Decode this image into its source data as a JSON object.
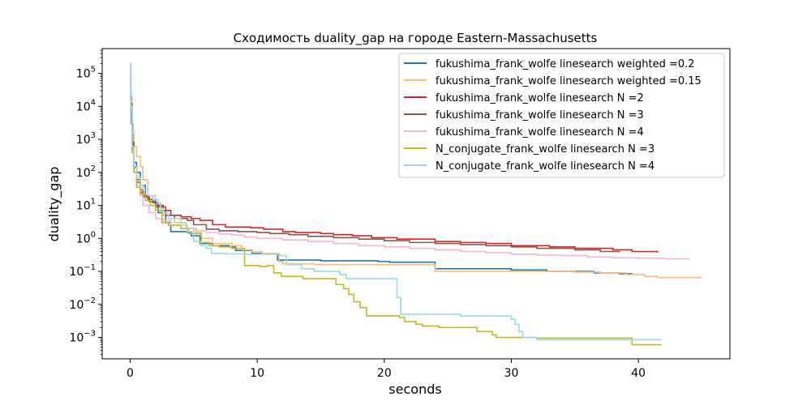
{
  "chart_data": {
    "type": "line",
    "title": "Сходимость duality_gap на городе Eastern-Massachusetts",
    "xlabel": "seconds",
    "ylabel": "duality_gap",
    "xlim": [
      -2.2,
      47.2
    ],
    "ylim_log10": [
      -3.65,
      5.75
    ],
    "yscale": "log",
    "x_ticks": [
      0,
      10,
      20,
      30,
      40
    ],
    "y_ticks": [
      {
        "exp": -3,
        "label": "10",
        "sup": "−3"
      },
      {
        "exp": -2,
        "label": "10",
        "sup": "−2"
      },
      {
        "exp": -1,
        "label": "10",
        "sup": "−1"
      },
      {
        "exp": 0,
        "label": "10",
        "sup": "0"
      },
      {
        "exp": 1,
        "label": "10",
        "sup": "1"
      },
      {
        "exp": 2,
        "label": "10",
        "sup": "2"
      },
      {
        "exp": 3,
        "label": "10",
        "sup": "3"
      },
      {
        "exp": 4,
        "label": "10",
        "sup": "4"
      },
      {
        "exp": 5,
        "label": "10",
        "sup": "5"
      }
    ],
    "grid": false,
    "legend_position": "upper-right",
    "series": [
      {
        "name": "fukushima_frank_wolfe linesearch weighted =0.2",
        "color": "#1f77b4",
        "points": [
          [
            0,
            200000
          ],
          [
            0.05,
            20000
          ],
          [
            0.1,
            3000
          ],
          [
            0.2,
            500
          ],
          [
            0.3,
            200
          ],
          [
            0.5,
            100
          ],
          [
            0.8,
            40
          ],
          [
            1.2,
            20
          ],
          [
            1.8,
            12
          ],
          [
            2.2,
            6
          ],
          [
            2.8,
            3
          ],
          [
            3.2,
            1.6
          ],
          [
            4.5,
            1.5
          ],
          [
            4.8,
            1.2
          ],
          [
            5.5,
            0.7
          ],
          [
            6.5,
            0.6
          ],
          [
            7.3,
            0.6
          ],
          [
            7.8,
            0.55
          ],
          [
            8.3,
            0.43
          ],
          [
            9.6,
            0.35
          ],
          [
            11.0,
            0.34
          ],
          [
            11.6,
            0.22
          ],
          [
            15.0,
            0.21
          ],
          [
            19.5,
            0.2
          ],
          [
            20.4,
            0.19
          ],
          [
            24.0,
            0.12
          ],
          [
            30.0,
            0.11
          ],
          [
            32.8,
            0.1
          ],
          [
            36.5,
            0.09
          ],
          [
            38.5,
            0.085
          ],
          [
            39.5,
            0.08
          ]
        ]
      },
      {
        "name": "fukushima_frank_wolfe linesearch weighted =0.15",
        "color": "#ffbb78",
        "points": [
          [
            0,
            200000
          ],
          [
            0.05,
            15000
          ],
          [
            0.15,
            1500
          ],
          [
            0.3,
            600
          ],
          [
            0.5,
            300
          ],
          [
            0.8,
            150
          ],
          [
            1.0,
            60
          ],
          [
            1.4,
            20
          ],
          [
            2.0,
            10
          ],
          [
            2.6,
            5
          ],
          [
            3.5,
            3
          ],
          [
            4.4,
            2
          ],
          [
            5.2,
            1.5
          ],
          [
            5.6,
            1.0
          ],
          [
            6.5,
            0.7
          ],
          [
            8.0,
            0.6
          ],
          [
            8.8,
            0.45
          ],
          [
            9.6,
            0.4
          ],
          [
            10.4,
            0.35
          ],
          [
            11.7,
            0.2
          ],
          [
            12.0,
            0.17
          ],
          [
            14.5,
            0.16
          ],
          [
            18.0,
            0.16
          ],
          [
            24.0,
            0.1
          ],
          [
            30.0,
            0.1
          ],
          [
            35.0,
            0.095
          ],
          [
            37.0,
            0.09
          ],
          [
            39.0,
            0.08
          ],
          [
            40.5,
            0.07
          ],
          [
            41.5,
            0.065
          ],
          [
            45.0,
            0.065
          ]
        ]
      },
      {
        "name": "fukushima_frank_wolfe linesearch N =2",
        "color": "#d62728",
        "points": [
          [
            0,
            200000
          ],
          [
            0.05,
            12000
          ],
          [
            0.15,
            800
          ],
          [
            0.3,
            150
          ],
          [
            0.5,
            60
          ],
          [
            0.8,
            30
          ],
          [
            1.0,
            20
          ],
          [
            1.4,
            15
          ],
          [
            2.0,
            10
          ],
          [
            2.6,
            7
          ],
          [
            3.2,
            5
          ],
          [
            4.0,
            4.5
          ],
          [
            4.8,
            4
          ],
          [
            5.5,
            3.5
          ],
          [
            6.5,
            2.6
          ],
          [
            7.5,
            2.2
          ],
          [
            9.5,
            2.1
          ],
          [
            10.5,
            1.9
          ],
          [
            12.0,
            1.6
          ],
          [
            13.0,
            1.5
          ],
          [
            15.0,
            1.4
          ],
          [
            16.0,
            1.3
          ],
          [
            17.5,
            1.2
          ],
          [
            19.0,
            1.05
          ],
          [
            21.0,
            0.95
          ],
          [
            24.0,
            0.8
          ],
          [
            26.0,
            0.75
          ],
          [
            28.0,
            0.7
          ],
          [
            30.0,
            0.6
          ],
          [
            33.0,
            0.55
          ],
          [
            35.0,
            0.5
          ],
          [
            38.0,
            0.45
          ],
          [
            39.5,
            0.4
          ],
          [
            41.5,
            0.37
          ]
        ]
      },
      {
        "name": "fukushima_frank_wolfe linesearch N =3",
        "color": "#8c564b",
        "points": [
          [
            0,
            200000
          ],
          [
            0.05,
            12000
          ],
          [
            0.15,
            700
          ],
          [
            0.3,
            140
          ],
          [
            0.5,
            50
          ],
          [
            0.8,
            25
          ],
          [
            1.0,
            18
          ],
          [
            1.5,
            13
          ],
          [
            2.0,
            9
          ],
          [
            2.8,
            5
          ],
          [
            3.5,
            4
          ],
          [
            4.5,
            3.5
          ],
          [
            5.0,
            2.6
          ],
          [
            6.0,
            1.9
          ],
          [
            7.0,
            1.7
          ],
          [
            8.5,
            1.6
          ],
          [
            10.0,
            1.5
          ],
          [
            11.0,
            1.4
          ],
          [
            12.5,
            1.3
          ],
          [
            14.0,
            1.15
          ],
          [
            16.0,
            1.05
          ],
          [
            18.0,
            0.95
          ],
          [
            20.0,
            0.85
          ],
          [
            22.0,
            0.75
          ],
          [
            24.0,
            0.7
          ],
          [
            26.0,
            0.65
          ],
          [
            28.0,
            0.6
          ],
          [
            30.0,
            0.55
          ],
          [
            32.0,
            0.5
          ],
          [
            35.0,
            0.45
          ],
          [
            37.0,
            0.4
          ],
          [
            38.5,
            0.38
          ]
        ]
      },
      {
        "name": "fukushima_frank_wolfe linesearch N =4",
        "color": "#f7b6d2",
        "points": [
          [
            0,
            200000
          ],
          [
            0.05,
            10000
          ],
          [
            0.15,
            500
          ],
          [
            0.3,
            100
          ],
          [
            0.5,
            40
          ],
          [
            0.8,
            20
          ],
          [
            1.0,
            10
          ],
          [
            1.5,
            6
          ],
          [
            2.0,
            4
          ],
          [
            2.6,
            3.5
          ],
          [
            3.2,
            2.5
          ],
          [
            4.0,
            2.0
          ],
          [
            5.0,
            1.7
          ],
          [
            6.0,
            1.5
          ],
          [
            7.0,
            1.35
          ],
          [
            8.0,
            1.25
          ],
          [
            9.0,
            1.1
          ],
          [
            10.0,
            1.0
          ],
          [
            12.0,
            0.9
          ],
          [
            14.0,
            0.8
          ],
          [
            16.0,
            0.7
          ],
          [
            18.0,
            0.6
          ],
          [
            20.0,
            0.55
          ],
          [
            22.0,
            0.5
          ],
          [
            24.0,
            0.45
          ],
          [
            26.0,
            0.4
          ],
          [
            28.0,
            0.37
          ],
          [
            30.0,
            0.33
          ],
          [
            32.0,
            0.31
          ],
          [
            34.0,
            0.3
          ],
          [
            36.0,
            0.27
          ],
          [
            38.0,
            0.26
          ],
          [
            40.0,
            0.25
          ],
          [
            42.0,
            0.24
          ],
          [
            44.0,
            0.23
          ]
        ]
      },
      {
        "name": "N_conjugate_frank_wolfe linesearch N =3",
        "color": "#bcbd22",
        "points": [
          [
            0,
            200000
          ],
          [
            0.05,
            8000
          ],
          [
            0.15,
            400
          ],
          [
            0.3,
            100
          ],
          [
            0.5,
            35
          ],
          [
            0.8,
            22
          ],
          [
            1.2,
            14
          ],
          [
            1.6,
            10
          ],
          [
            2.0,
            7
          ],
          [
            2.5,
            3
          ],
          [
            3.0,
            2.5
          ],
          [
            4.0,
            2.0
          ],
          [
            4.6,
            1.4
          ],
          [
            5.6,
            0.75
          ],
          [
            6.2,
            0.6
          ],
          [
            7.0,
            0.55
          ],
          [
            8.0,
            0.5
          ],
          [
            9.0,
            0.15
          ],
          [
            10.2,
            0.14
          ],
          [
            10.8,
            0.15
          ],
          [
            11.3,
            0.09
          ],
          [
            11.9,
            0.07
          ],
          [
            13.0,
            0.07
          ],
          [
            13.6,
            0.06
          ],
          [
            16.0,
            0.06
          ],
          [
            16.2,
            0.04
          ],
          [
            16.8,
            0.03
          ],
          [
            17.2,
            0.02
          ],
          [
            17.6,
            0.012
          ],
          [
            18.1,
            0.008
          ],
          [
            18.6,
            0.0045
          ],
          [
            19.0,
            0.0045
          ],
          [
            21.2,
            0.004
          ],
          [
            21.6,
            0.003
          ],
          [
            22.5,
            0.0025
          ],
          [
            23.0,
            0.0022
          ],
          [
            24.3,
            0.002
          ],
          [
            26.9,
            0.002
          ],
          [
            27.3,
            0.0015
          ],
          [
            28.5,
            0.0012
          ],
          [
            28.8,
            0.001
          ],
          [
            32.0,
            0.00095
          ],
          [
            35.0,
            0.00095
          ],
          [
            39.0,
            0.00095
          ],
          [
            39.5,
            0.0006
          ],
          [
            41.8,
            0.0006
          ]
        ]
      },
      {
        "name": "N_conjugate_frank_wolfe linesearch N =4",
        "color": "#9edae5",
        "points": [
          [
            0,
            200000
          ],
          [
            0.05,
            10000
          ],
          [
            0.15,
            600
          ],
          [
            0.3,
            150
          ],
          [
            0.5,
            70
          ],
          [
            0.8,
            40
          ],
          [
            1.0,
            30
          ],
          [
            1.4,
            20
          ],
          [
            1.8,
            15
          ],
          [
            2.2,
            12
          ],
          [
            2.4,
            8
          ],
          [
            2.6,
            6
          ],
          [
            3.0,
            4
          ],
          [
            4.0,
            2.5
          ],
          [
            4.5,
            1.6
          ],
          [
            5.0,
            0.8
          ],
          [
            5.6,
            0.6
          ],
          [
            6.0,
            0.5
          ],
          [
            6.4,
            0.35
          ],
          [
            7.5,
            0.34
          ],
          [
            9.0,
            0.33
          ],
          [
            11.8,
            0.3
          ],
          [
            12.3,
            0.16
          ],
          [
            13.5,
            0.12
          ],
          [
            14.5,
            0.1
          ],
          [
            16.0,
            0.1
          ],
          [
            16.5,
            0.08
          ],
          [
            17.0,
            0.06
          ],
          [
            21.0,
            0.016
          ],
          [
            21.3,
            0.005
          ],
          [
            24.0,
            0.005
          ],
          [
            26.0,
            0.0045
          ],
          [
            29.5,
            0.0045
          ],
          [
            30.0,
            0.0035
          ],
          [
            30.3,
            0.0025
          ],
          [
            30.6,
            0.0015
          ],
          [
            30.9,
            0.001
          ],
          [
            32.0,
            0.00085
          ],
          [
            38.0,
            0.00085
          ],
          [
            40.0,
            0.00085
          ],
          [
            41.8,
            0.00085
          ]
        ]
      }
    ]
  }
}
